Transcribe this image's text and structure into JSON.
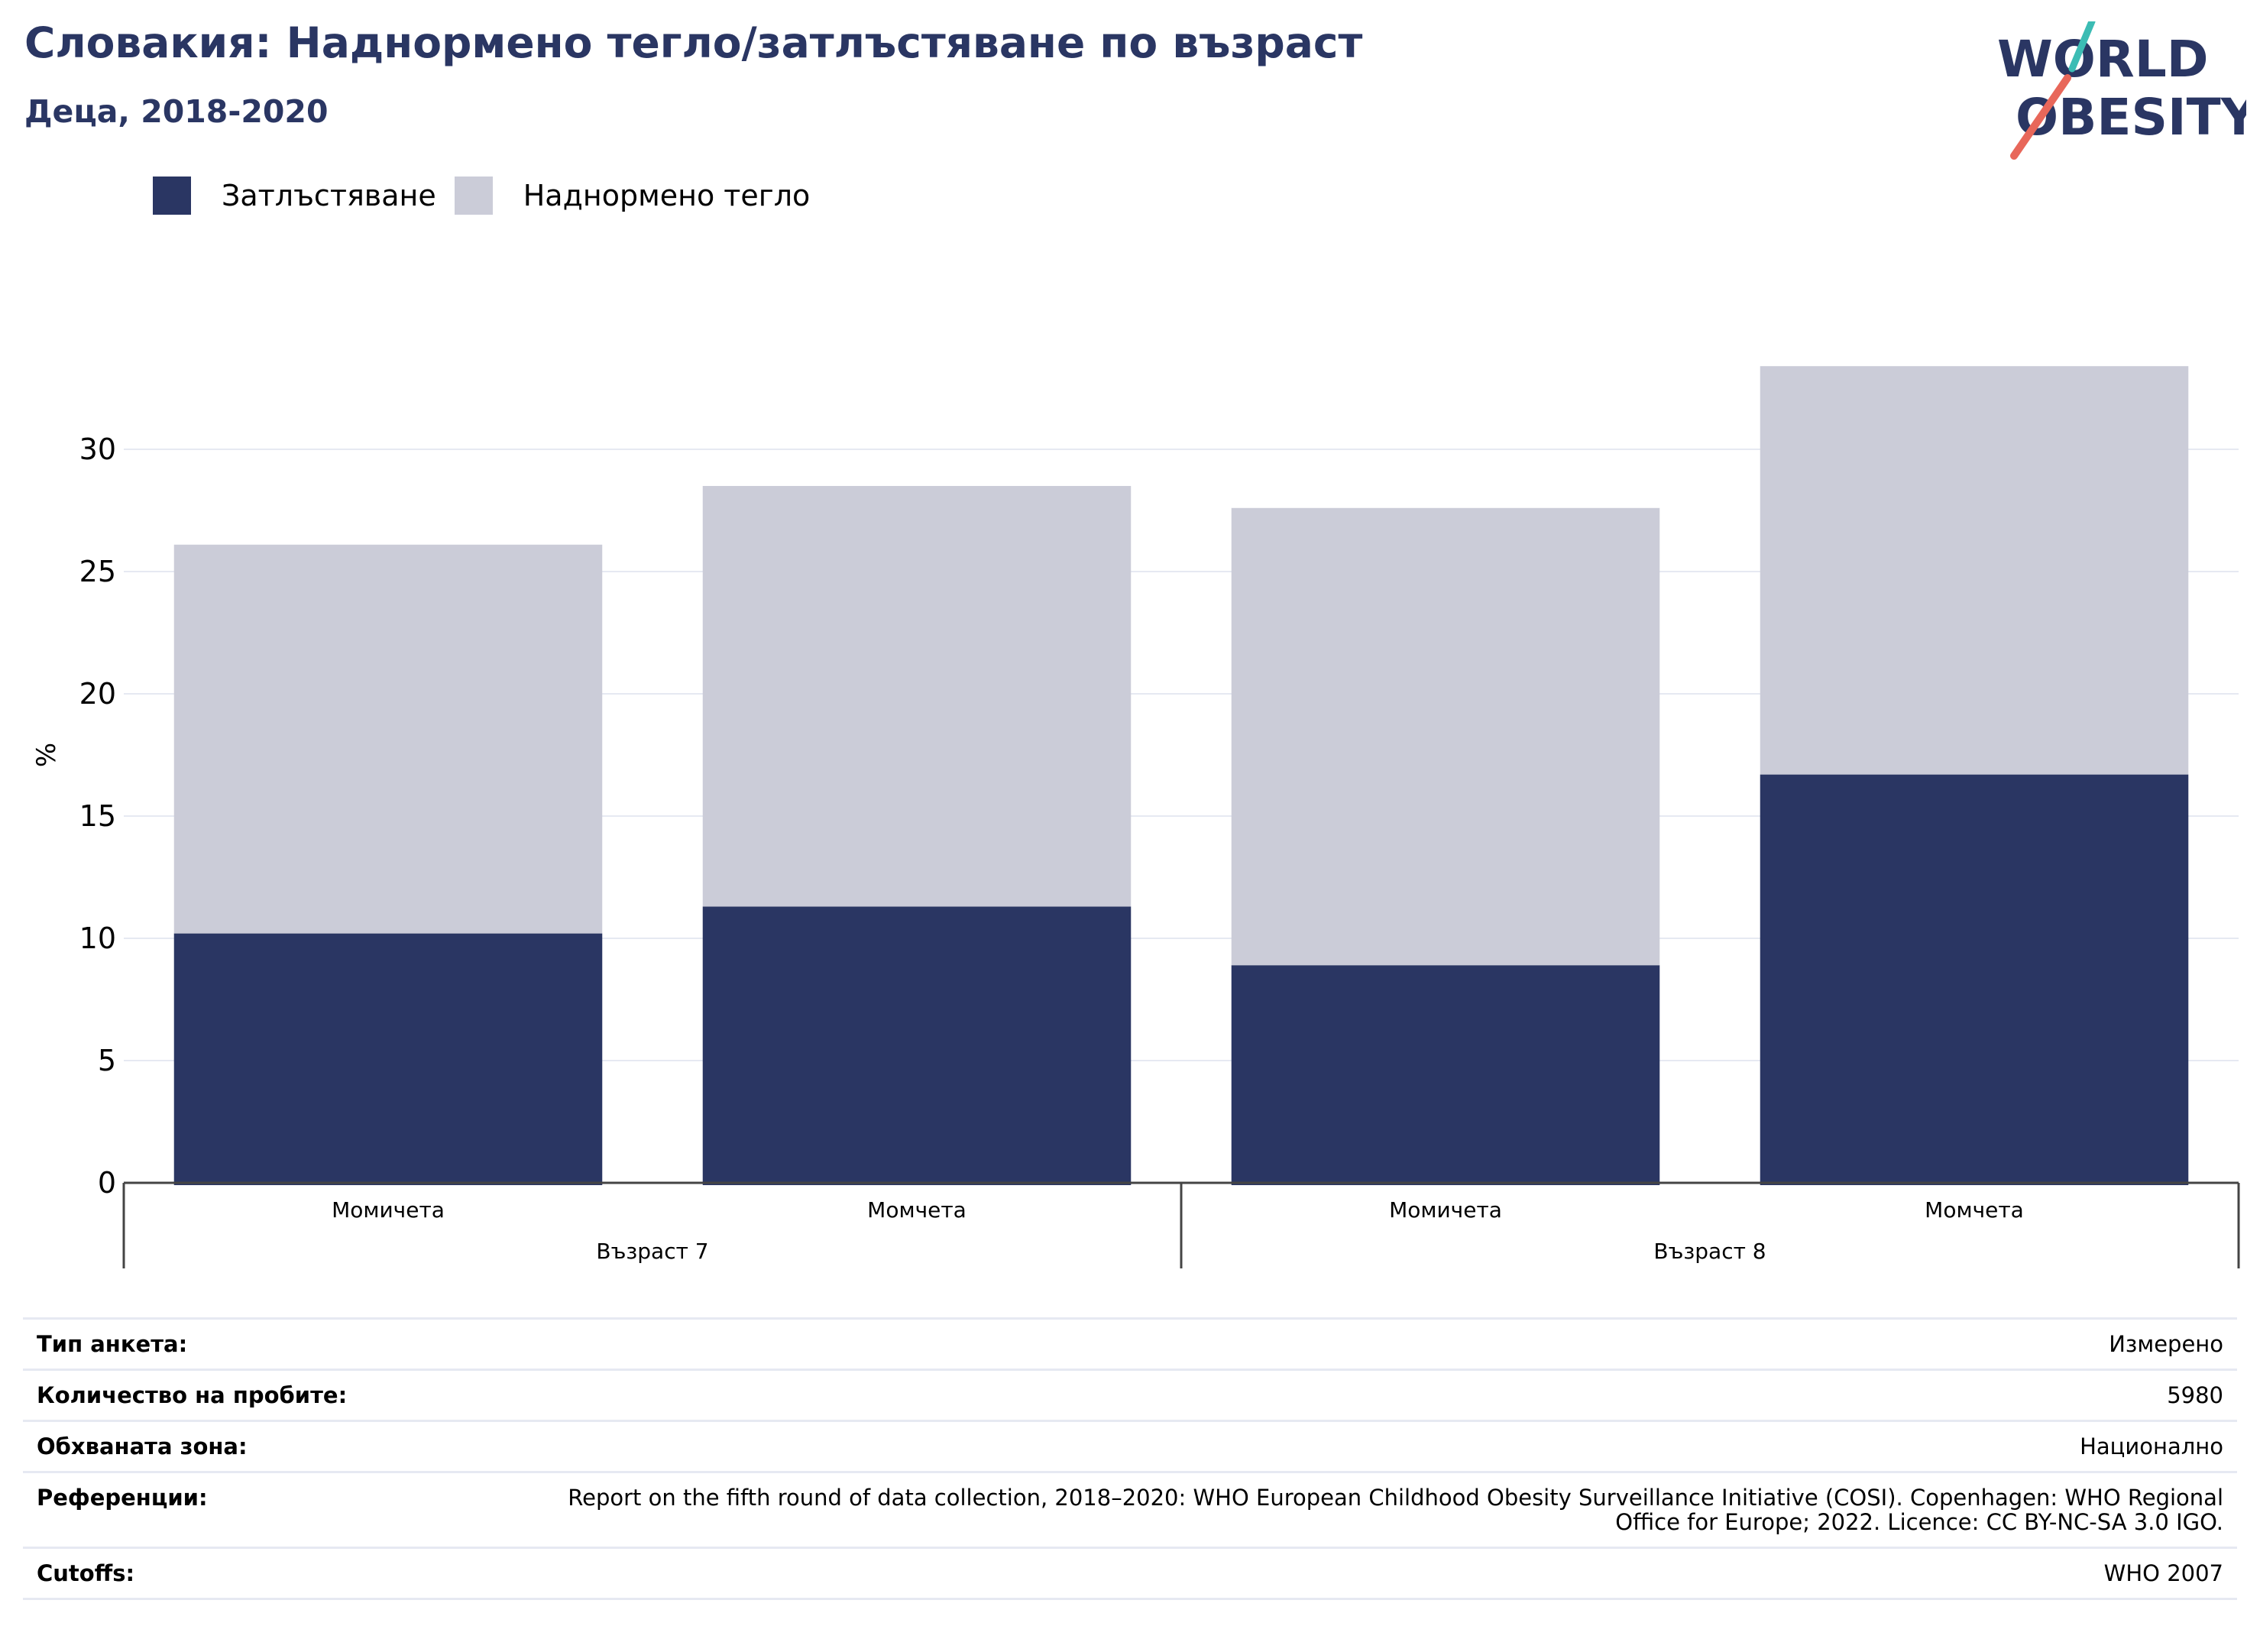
{
  "header": {
    "title": "Словакия: Наднормено тегло/затлъстяване по възраст",
    "subtitle": "Деца, 2018-2020"
  },
  "logo": {
    "line1": "WORLD",
    "line2": "OBESITY",
    "accent_teal": "#3cbcb4",
    "accent_coral": "#e8675a"
  },
  "colors": {
    "obesity": "#2a3663",
    "overweight": "#cbccd8",
    "text": "#2a3663"
  },
  "chart_data": {
    "type": "bar",
    "stacked": true,
    "ylabel": "%",
    "ylim": [
      0,
      35
    ],
    "yticks": [
      0,
      5,
      10,
      15,
      20,
      25,
      30
    ],
    "grid": true,
    "legend_position": "top-left",
    "groups": [
      {
        "label": "Възраст 7",
        "categories": [
          "Момичета",
          "Момчета"
        ]
      },
      {
        "label": "Възраст 8",
        "categories": [
          "Момичета",
          "Момчета"
        ]
      }
    ],
    "categories": [
      "Момичета",
      "Момчета",
      "Момичета",
      "Момчета"
    ],
    "series": [
      {
        "name": "Затлъстяване",
        "color": "#2a3663",
        "values": [
          10.2,
          11.3,
          8.9,
          16.7
        ]
      },
      {
        "name": "Наднормено тегло",
        "color": "#cbccd8",
        "values": [
          15.9,
          17.2,
          18.7,
          16.7
        ]
      }
    ]
  },
  "info": [
    {
      "label": "Тип анкета:",
      "value": "Измерено"
    },
    {
      "label": "Количество на пробите:",
      "value": "5980"
    },
    {
      "label": "Обхваната зона:",
      "value": "Национално"
    },
    {
      "label": "Референции:",
      "value": "Report on the fifth round of data collection, 2018–2020: WHO European Childhood Obesity Surveillance Initiative (COSI). Copenhagen: WHO Regional Office for Europe; 2022. Licence: CC BY-NC-SA 3.0 IGO."
    },
    {
      "label": "Cutoffs:",
      "value": "WHO 2007"
    }
  ]
}
